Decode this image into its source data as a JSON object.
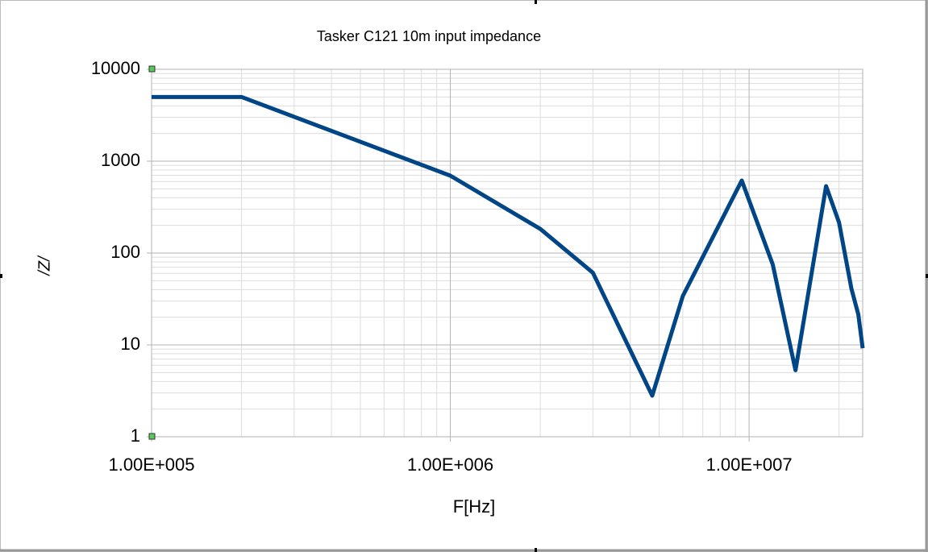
{
  "chart_data": {
    "type": "line",
    "title": "Tasker C121 10m input impedance",
    "x_label": "F[Hz]",
    "y_label": "/Z/",
    "x_log": true,
    "y_log": true,
    "grid": true,
    "minor_grid": true,
    "xlim": [
      100000,
      24000000
    ],
    "ylim": [
      1,
      10000
    ],
    "xticks": [
      {
        "value": 100000,
        "label": "1.00E+005"
      },
      {
        "value": 1000000,
        "label": "1.00E+006"
      },
      {
        "value": 10000000,
        "label": "1.00E+007"
      }
    ],
    "yticks": [
      1,
      10,
      100,
      1000,
      10000
    ],
    "series": [
      {
        "color": "#004586",
        "x": [
          100000,
          200000,
          1000000,
          2000000,
          3000000,
          4740000,
          6000000,
          9450000,
          12000000,
          14300000,
          18100000,
          20000000,
          22000000,
          23200000,
          24000000
        ],
        "values": [
          5000,
          5000,
          695,
          183,
          61,
          2.8,
          34,
          616,
          75,
          5.3,
          535,
          215,
          41,
          21.5,
          9.2
        ]
      }
    ]
  }
}
